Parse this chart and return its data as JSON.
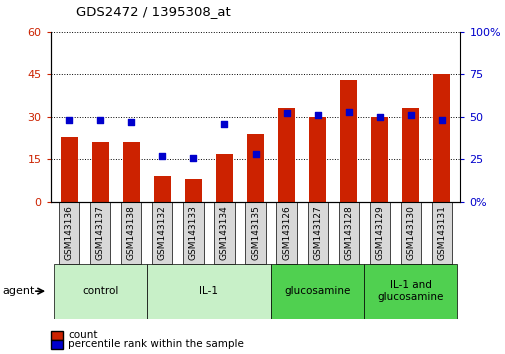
{
  "title": "GDS2472 / 1395308_at",
  "samples": [
    "GSM143136",
    "GSM143137",
    "GSM143138",
    "GSM143132",
    "GSM143133",
    "GSM143134",
    "GSM143135",
    "GSM143126",
    "GSM143127",
    "GSM143128",
    "GSM143129",
    "GSM143130",
    "GSM143131"
  ],
  "counts": [
    23,
    21,
    21,
    9,
    8,
    17,
    24,
    33,
    30,
    43,
    30,
    33,
    45
  ],
  "percentiles": [
    48,
    48,
    47,
    27,
    26,
    46,
    28,
    52,
    51,
    53,
    50,
    51,
    48
  ],
  "groups": [
    {
      "label": "control",
      "start": 0,
      "end": 3,
      "color": "#c8f0c8"
    },
    {
      "label": "IL-1",
      "start": 3,
      "end": 7,
      "color": "#c8f0c8"
    },
    {
      "label": "glucosamine",
      "start": 7,
      "end": 10,
      "color": "#50d050"
    },
    {
      "label": "IL-1 and\nglucosamine",
      "start": 10,
      "end": 13,
      "color": "#50d050"
    }
  ],
  "bar_color": "#cc2200",
  "dot_color": "#0000cc",
  "left_ylim": [
    0,
    60
  ],
  "right_ylim": [
    0,
    100
  ],
  "left_yticks": [
    0,
    15,
    30,
    45,
    60
  ],
  "right_yticks": [
    0,
    25,
    50,
    75,
    100
  ],
  "left_ytick_labels": [
    "0",
    "15",
    "30",
    "45",
    "60"
  ],
  "right_ytick_labels": [
    "0",
    "25",
    "50",
    "75",
    "100%"
  ],
  "right_ytick_top_label": "100%",
  "bg_color": "#ffffff",
  "agent_label": "agent",
  "legend_count_label": "count",
  "legend_percentile_label": "percentile rank within the sample",
  "sample_box_color": "#d8d8d8",
  "bar_width": 0.55
}
